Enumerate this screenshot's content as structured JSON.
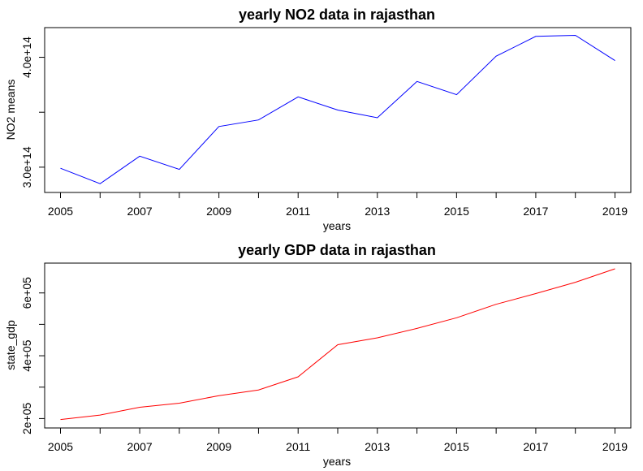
{
  "chart_data": [
    {
      "type": "line",
      "title": "yearly NO2 data in rajasthan",
      "xlabel": "years",
      "ylabel": "NO2 means",
      "x": [
        2005,
        2006,
        2007,
        2008,
        2009,
        2010,
        2011,
        2012,
        2013,
        2014,
        2015,
        2016,
        2017,
        2018,
        2019
      ],
      "series": [
        {
          "color": "#0000ff",
          "values": [
            299000000000000.0,
            285000000000000.0,
            310000000000000.0,
            298000000000000.0,
            337000000000000.0,
            343000000000000.0,
            364000000000000.0,
            352000000000000.0,
            345000000000000.0,
            378000000000000.0,
            366000000000000.0,
            401000000000000.0,
            419000000000000.0,
            420000000000000.0,
            397000000000000.0
          ]
        }
      ],
      "xticks": [
        2005,
        2007,
        2009,
        2011,
        2013,
        2015,
        2017,
        2019
      ],
      "xtick_labels": [
        "2005",
        "2007",
        "2009",
        "2011",
        "2013",
        "2015",
        "2017",
        "2019"
      ],
      "yticks": [
        300000000000000.0,
        400000000000000.0
      ],
      "ytick_labels": [
        "3.0e+14",
        "4.0e+14"
      ],
      "xlim": [
        2004.6,
        2019.4
      ],
      "ylim": [
        277000000000000.0,
        427000000000000.0
      ]
    },
    {
      "type": "line",
      "title": "yearly GDP data in rajasthan",
      "xlabel": "years",
      "ylabel": "state_gdp",
      "x": [
        2005,
        2006,
        2007,
        2008,
        2009,
        2010,
        2011,
        2012,
        2013,
        2014,
        2015,
        2016,
        2017,
        2018,
        2019
      ],
      "series": [
        {
          "color": "#ff0000",
          "values": [
            197000,
            211000,
            236000,
            249000,
            273000,
            291000,
            333000,
            435000,
            457000,
            487000,
            521000,
            564000,
            598000,
            634000,
            677000
          ]
        }
      ],
      "xticks": [
        2005,
        2007,
        2009,
        2011,
        2013,
        2015,
        2017,
        2019
      ],
      "xtick_labels": [
        "2005",
        "2007",
        "2009",
        "2011",
        "2013",
        "2015",
        "2017",
        "2019"
      ],
      "yticks": [
        200000,
        400000,
        600000
      ],
      "ytick_labels": [
        "2e+05",
        "4e+05",
        "6e+05"
      ],
      "xlim": [
        2004.6,
        2019.4
      ],
      "ylim": [
        170000,
        695000
      ]
    }
  ]
}
